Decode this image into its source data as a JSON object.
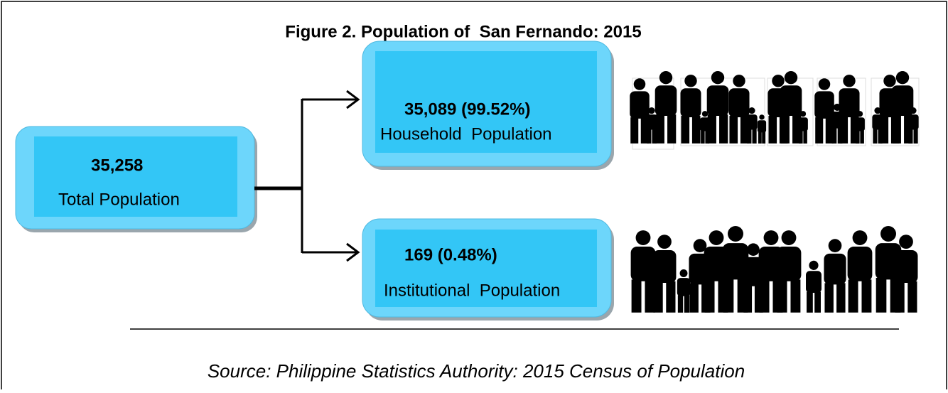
{
  "title": "Figure 2. Population of  San Fernando: 2015",
  "nodes": [
    {
      "value": "35,258",
      "label": "Total Population"
    },
    {
      "value": "35,089 (99.52%)",
      "label": "Household  Population"
    },
    {
      "value": "169 (0.48%)",
      "label": "Institutional  Population"
    }
  ],
  "source": "Source: Philippine Statistics Authority: 2015 Census of Population"
}
